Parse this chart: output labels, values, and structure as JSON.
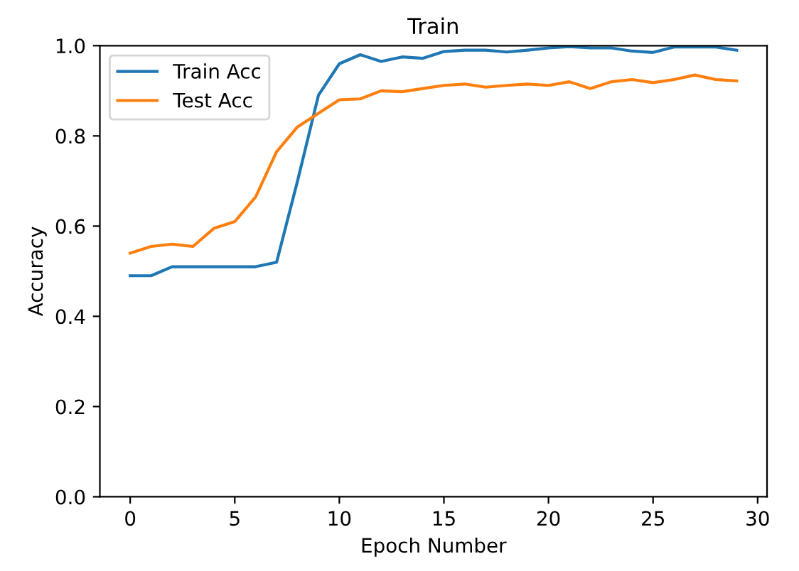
{
  "chart_data": {
    "type": "line",
    "title": "Train",
    "xlabel": "Epoch Number",
    "ylabel": "Accuracy",
    "x": [
      0,
      1,
      2,
      3,
      4,
      5,
      6,
      7,
      8,
      9,
      10,
      11,
      12,
      13,
      14,
      15,
      16,
      17,
      18,
      19,
      20,
      21,
      22,
      23,
      24,
      25,
      26,
      27,
      28,
      29
    ],
    "series": [
      {
        "name": "Train Acc",
        "color": "#1f77b4",
        "values": [
          0.49,
          0.49,
          0.51,
          0.51,
          0.51,
          0.51,
          0.51,
          0.52,
          0.7,
          0.89,
          0.96,
          0.98,
          0.965,
          0.975,
          0.972,
          0.987,
          0.99,
          0.99,
          0.986,
          0.99,
          0.995,
          0.998,
          0.995,
          0.995,
          0.988,
          0.985,
          0.997,
          0.997,
          0.997,
          0.99
        ]
      },
      {
        "name": "Test Acc",
        "color": "#ff7f0e",
        "values": [
          0.54,
          0.555,
          0.56,
          0.555,
          0.595,
          0.61,
          0.665,
          0.765,
          0.82,
          0.85,
          0.88,
          0.882,
          0.9,
          0.898,
          0.905,
          0.912,
          0.915,
          0.908,
          0.912,
          0.915,
          0.912,
          0.92,
          0.905,
          0.92,
          0.925,
          0.918,
          0.925,
          0.935,
          0.925,
          0.922
        ]
      }
    ],
    "xlim": [
      -1.45,
      30.45
    ],
    "xticks": [
      0,
      5,
      10,
      15,
      20,
      25,
      30
    ],
    "ylim": [
      0.0,
      1.0
    ],
    "yticks": [
      {
        "value": 0,
        "label": "0.0"
      },
      {
        "value": 0.2,
        "label": "0.2"
      },
      {
        "value": 0.4,
        "label": "0.4"
      },
      {
        "value": 0.6,
        "label": "0.6"
      },
      {
        "value": 0.8,
        "label": "0.8"
      },
      {
        "value": 1.0,
        "label": "1.0"
      }
    ],
    "legend": "top left",
    "grid": false,
    "marker": "none",
    "line_style": "solid"
  }
}
